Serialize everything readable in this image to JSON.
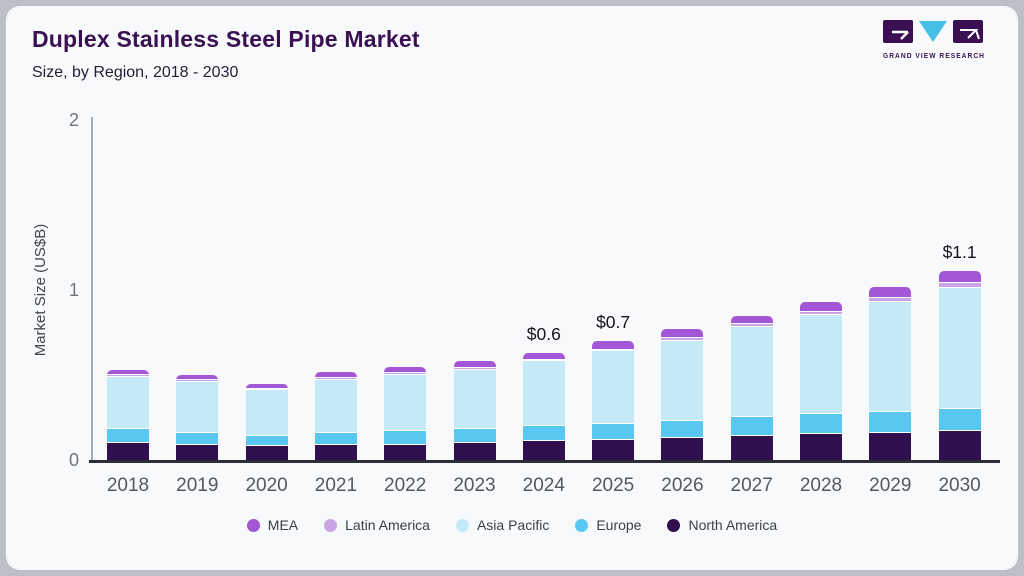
{
  "header": {
    "title": "Duplex Stainless Steel Pipe Market",
    "subtitle": "Size, by Region, 2018 - 2030",
    "logo_text": "GRAND VIEW RESEARCH"
  },
  "colors": {
    "card_bg": "#f7f9fb",
    "frame_bg": "#bcc0c6",
    "title_purple": "#3a1053",
    "logo_cyan": "#45bee8",
    "x_axis": "#2e2e38",
    "y_axis": "#a7acb3"
  },
  "chart_data": {
    "type": "bar",
    "stacked": true,
    "title": "Duplex Stainless Steel Pipe Market",
    "subtitle": "Size, by Region, 2018 - 2030",
    "xlabel": "",
    "ylabel": "Market Size (US$B)",
    "ylim": [
      0,
      2
    ],
    "yticks": [
      "0",
      "1",
      "2"
    ],
    "grid": false,
    "legend_position": "bottom",
    "categories": [
      "2018",
      "2019",
      "2020",
      "2021",
      "2022",
      "2023",
      "2024",
      "2025",
      "2026",
      "2027",
      "2028",
      "2029",
      "2030"
    ],
    "series": [
      {
        "name": "North America",
        "color": "#2f0f4d",
        "values": [
          0.1,
          0.09,
          0.08,
          0.09,
          0.09,
          0.1,
          0.11,
          0.12,
          0.13,
          0.14,
          0.15,
          0.16,
          0.17
        ]
      },
      {
        "name": "Europe",
        "color": "#58c8f0",
        "values": [
          0.08,
          0.07,
          0.06,
          0.07,
          0.08,
          0.08,
          0.09,
          0.09,
          0.1,
          0.11,
          0.12,
          0.12,
          0.13
        ]
      },
      {
        "name": "Asia Pacific",
        "color": "#c6e9f8",
        "values": [
          0.31,
          0.3,
          0.27,
          0.31,
          0.33,
          0.35,
          0.38,
          0.43,
          0.47,
          0.53,
          0.58,
          0.65,
          0.71
        ]
      },
      {
        "name": "Latin America",
        "color": "#cba4e6",
        "values": [
          0.01,
          0.01,
          0.01,
          0.01,
          0.01,
          0.01,
          0.01,
          0.01,
          0.02,
          0.02,
          0.02,
          0.02,
          0.03
        ]
      },
      {
        "name": "MEA",
        "color": "#a356d6",
        "values": [
          0.03,
          0.03,
          0.03,
          0.04,
          0.04,
          0.04,
          0.04,
          0.05,
          0.05,
          0.05,
          0.06,
          0.07,
          0.07
        ]
      }
    ],
    "totals": [
      0.53,
      0.5,
      0.45,
      0.52,
      0.55,
      0.58,
      0.63,
      0.7,
      0.77,
      0.85,
      0.93,
      1.02,
      1.11
    ],
    "bar_labels": {
      "2024": "$0.6",
      "2025": "$0.7",
      "2030": "$1.1"
    },
    "legend": [
      "MEA",
      "Latin America",
      "Asia Pacific",
      "Europe",
      "North America"
    ]
  }
}
